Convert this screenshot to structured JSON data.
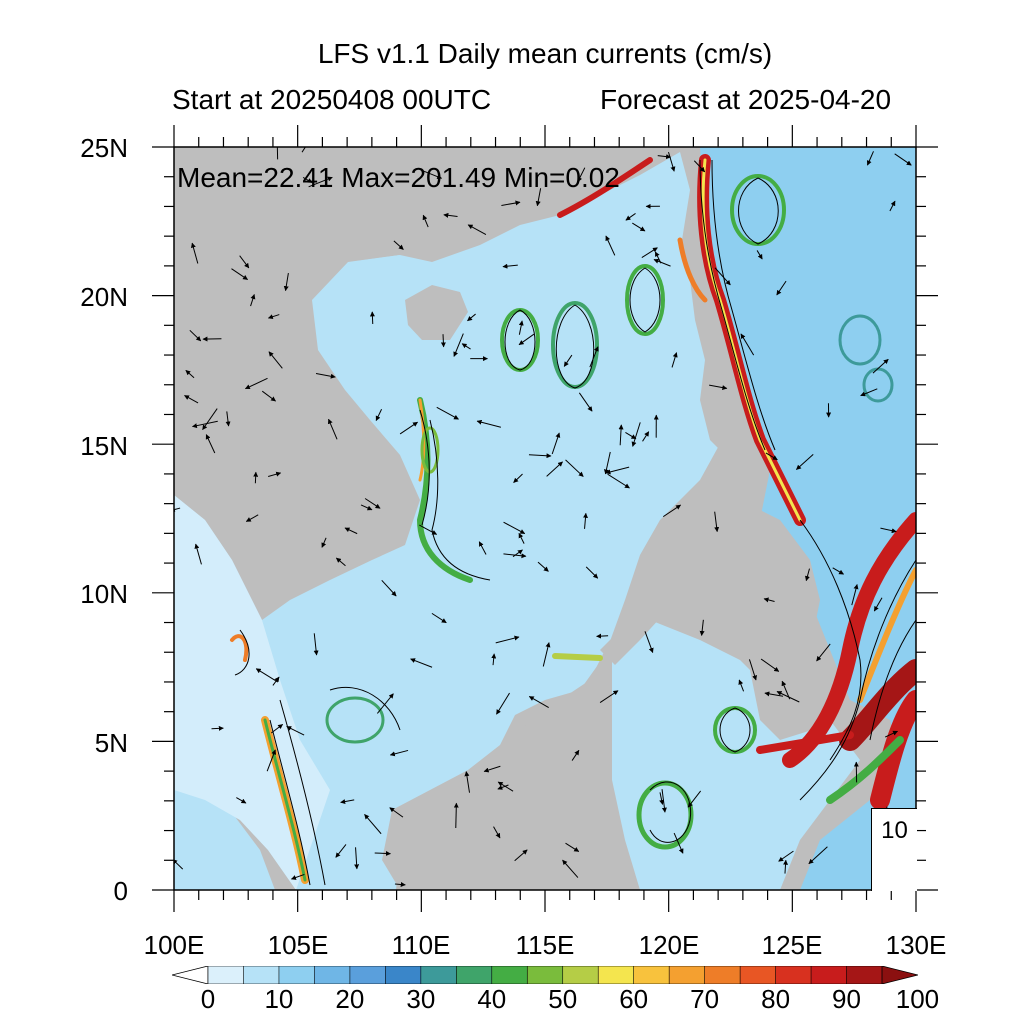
{
  "title": "LFS v1.1 Daily mean currents (cm/s)",
  "subtitle_left": "Start at 20250408 00UTC",
  "subtitle_right": "Forecast at 2025-04-20",
  "stats": {
    "text": "Mean=22.41  Max=201.49  Min=0.02",
    "mean": 22.41,
    "max": 201.49,
    "min": 0.02
  },
  "map": {
    "lon_range": [
      100,
      130
    ],
    "lat_range": [
      0,
      25
    ],
    "lon_ticks": [
      "100E",
      "105E",
      "110E",
      "115E",
      "120E",
      "125E",
      "130E"
    ],
    "lat_ticks": [
      "25N",
      "20N",
      "15N",
      "10N",
      "5N",
      "0"
    ],
    "land_color": "#bebebe",
    "reference_vector": {
      "label": "10",
      "units": "cm/s"
    }
  },
  "colorbar": {
    "labels": [
      "0",
      "10",
      "20",
      "30",
      "40",
      "50",
      "60",
      "70",
      "80",
      "90",
      "100"
    ],
    "levels": [
      0,
      5,
      10,
      15,
      20,
      25,
      30,
      35,
      40,
      45,
      50,
      55,
      60,
      65,
      70,
      75,
      80,
      85,
      90,
      95,
      100
    ],
    "colors": [
      "#ffffff",
      "#dbf0fb",
      "#b6e2f7",
      "#8ecff0",
      "#6fb6e6",
      "#5a9fdc",
      "#3a86c9",
      "#3d9a9a",
      "#3fa46a",
      "#44ad44",
      "#7abc3c",
      "#b5cd46",
      "#f4e54e",
      "#f8c23d",
      "#f4a030",
      "#ee7d28",
      "#e85624",
      "#d8311f",
      "#c81c1c",
      "#a51616",
      "#8b1010"
    ]
  }
}
